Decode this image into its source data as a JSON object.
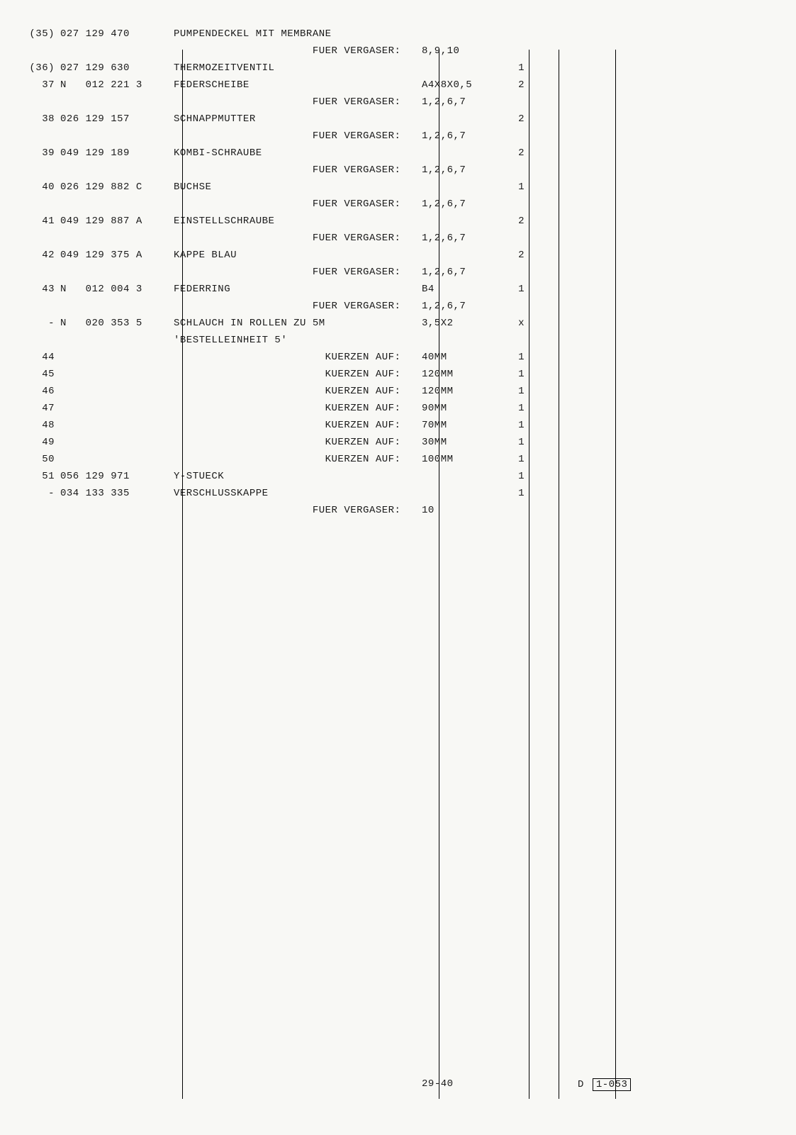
{
  "text_color": "#1a1a1a",
  "bg_color": "#f8f8f5",
  "line_color": "#000000",
  "font_family": "Courier New",
  "font_size": 14,
  "vlines_x": [
    227,
    589,
    716,
    758,
    838
  ],
  "vlines_height": 1480,
  "rows": [
    {
      "pos": "(35)",
      "part": "027 129 470",
      "desc": "PUMPENDECKEL MIT MEMBRANE",
      "spec": "",
      "qty": ""
    },
    {
      "pos": "",
      "part": "",
      "desc": "                      FUER VERGASER:",
      "spec": "8,9,10",
      "qty": ""
    },
    {
      "pos": "(36)",
      "part": "027 129 630",
      "desc": "THERMOZEITVENTIL",
      "spec": "",
      "qty": "1"
    },
    {
      "pos": "37",
      "part": "N   012 221 3",
      "desc": "FEDERSCHEIBE",
      "spec": "A4X8X0,5",
      "qty": "2"
    },
    {
      "pos": "",
      "part": "",
      "desc": "                      FUER VERGASER:",
      "spec": "1,2,6,7",
      "qty": ""
    },
    {
      "pos": "38",
      "part": "026 129 157",
      "desc": "SCHNAPPMUTTER",
      "spec": "",
      "qty": "2"
    },
    {
      "pos": "",
      "part": "",
      "desc": "                      FUER VERGASER:",
      "spec": "1,2,6,7",
      "qty": ""
    },
    {
      "pos": "39",
      "part": "049 129 189",
      "desc": "KOMBI-SCHRAUBE",
      "spec": "",
      "qty": "2"
    },
    {
      "pos": "",
      "part": "",
      "desc": "                      FUER VERGASER:",
      "spec": "1,2,6,7",
      "qty": ""
    },
    {
      "pos": "40",
      "part": "026 129 882 C",
      "desc": "BUCHSE",
      "spec": "",
      "qty": "1"
    },
    {
      "pos": "",
      "part": "",
      "desc": "                      FUER VERGASER:",
      "spec": "1,2,6,7",
      "qty": ""
    },
    {
      "pos": "41",
      "part": "049 129 887 A",
      "desc": "EINSTELLSCHRAUBE",
      "spec": "",
      "qty": "2"
    },
    {
      "pos": "",
      "part": "",
      "desc": "                      FUER VERGASER:",
      "spec": "1,2,6,7",
      "qty": ""
    },
    {
      "pos": "42",
      "part": "049 129 375 A",
      "desc": "KAPPE BLAU",
      "spec": "",
      "qty": "2"
    },
    {
      "pos": "",
      "part": "",
      "desc": "                      FUER VERGASER:",
      "spec": "1,2,6,7",
      "qty": ""
    },
    {
      "pos": "43",
      "part": "N   012 004 3",
      "desc": "FEDERRING",
      "spec": "B4",
      "qty": "1"
    },
    {
      "pos": "",
      "part": "",
      "desc": "                      FUER VERGASER:",
      "spec": "1,2,6,7",
      "qty": ""
    },
    {
      "pos": "-",
      "part": "N   020 353 5",
      "desc": "SCHLAUCH IN ROLLEN ZU 5M",
      "spec": "3,5X2",
      "qty": "x"
    },
    {
      "pos": "",
      "part": "",
      "desc": "'BESTELLEINHEIT 5'",
      "spec": "",
      "qty": ""
    },
    {
      "pos": "44",
      "part": "",
      "desc": "                        KUERZEN AUF:",
      "spec": "40MM",
      "qty": "1"
    },
    {
      "pos": "45",
      "part": "",
      "desc": "                        KUERZEN AUF:",
      "spec": "120MM",
      "qty": "1"
    },
    {
      "pos": "46",
      "part": "",
      "desc": "                        KUERZEN AUF:",
      "spec": "120MM",
      "qty": "1"
    },
    {
      "pos": "47",
      "part": "",
      "desc": "                        KUERZEN AUF:",
      "spec": "90MM",
      "qty": "1"
    },
    {
      "pos": "48",
      "part": "",
      "desc": "                        KUERZEN AUF:",
      "spec": "70MM",
      "qty": "1"
    },
    {
      "pos": "49",
      "part": "",
      "desc": "                        KUERZEN AUF:",
      "spec": "30MM",
      "qty": "1"
    },
    {
      "pos": "50",
      "part": "",
      "desc": "                        KUERZEN AUF:",
      "spec": "100MM",
      "qty": "1"
    },
    {
      "pos": "51",
      "part": "056 129 971",
      "desc": "Y-STUECK",
      "spec": "",
      "qty": "1"
    },
    {
      "pos": "-",
      "part": "034 133 335",
      "desc": "VERSCHLUSSKAPPE",
      "spec": "",
      "qty": "1"
    },
    {
      "pos": "",
      "part": "",
      "desc": "                      FUER VERGASER:",
      "spec": "10",
      "qty": ""
    }
  ],
  "footer": {
    "page": "29-40",
    "code_prefix": "D",
    "code": "1-053"
  }
}
